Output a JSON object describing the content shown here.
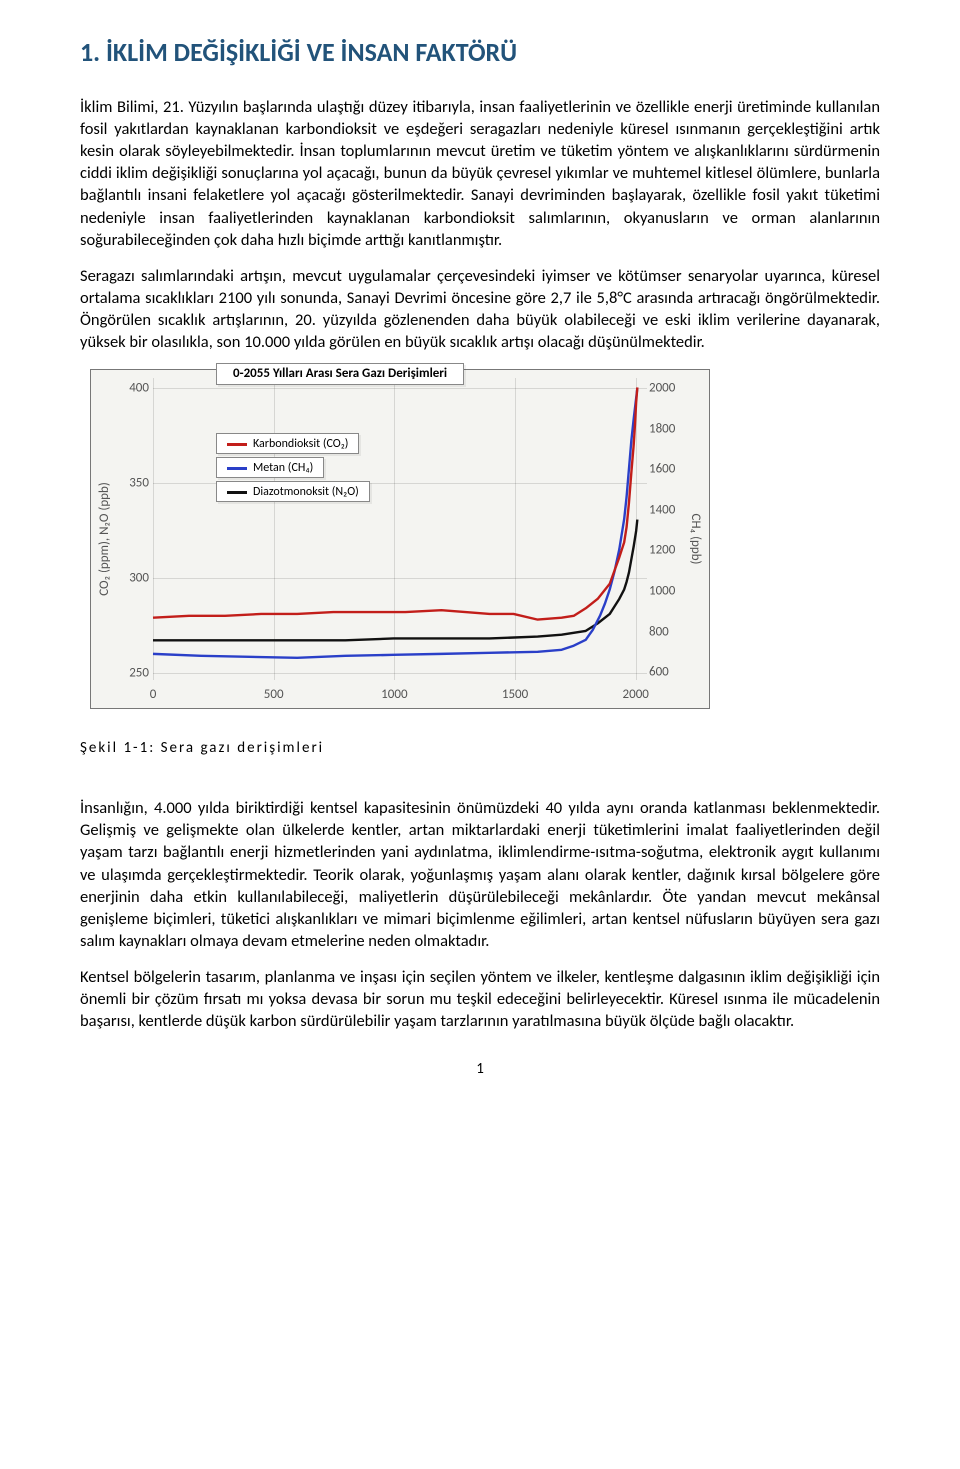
{
  "heading": "1. İKLİM DEĞİŞİKLİĞİ VE İNSAN FAKTÖRÜ",
  "subtitle": "İklim Bilimi, 21. Yüzyılın başlarında ulaştığı düzey itibarıyla, insan faaliyetlerinin ve özellikle enerji üretiminde kullanılan fosil yakıtlardan kaynaklanan karbondioksit ve eşdeğeri seragazları nedeniyle küresel ısınmanın gerçekleştiğini artık kesin olarak söyleyebilmektedir. İnsan toplumlarının mevcut üretim ve tüketim yöntem ve alışkanlıklarını sürdürmenin ciddi iklim değişikliği sonuçlarına yol açacağı, bunun da büyük çevresel yıkımlar ve muhtemel kitlesel ölümlere, bunlarla bağlantılı insani felaketlere yol açacağı gösterilmektedir. Sanayi devriminden başlayarak, özellikle fosil yakıt tüketimi nedeniyle insan faaliyetlerinden kaynaklanan karbondioksit salımlarının, okyanusların ve orman alanlarının soğurabileceğinden çok daha hızlı biçimde arttığı kanıtlanmıştır.",
  "para2": "Seragazı salımlarındaki artışın, mevcut uygulamalar çerçevesindeki iyimser ve kötümser senaryolar uyarınca, küresel ortalama sıcaklıkları 2100 yılı sonunda, Sanayi Devrimi öncesine göre 2,7 ile 5,8°C arasında artıracağı öngörülmektedir. Öngörülen sıcaklık artışlarının, 20. yüzyılda gözlenenden daha büyük olabileceği ve eski iklim verilerine dayanarak, yüksek bir olasılıkla, son 10.000 yılda görülen en büyük sıcaklık artışı olacağı düşünülmektedir.",
  "figcaption": "Şekil 1-1: Sera gazı derişimleri",
  "para3": "İnsanlığın, 4.000 yılda biriktirdiği kentsel kapasitesinin önümüzdeki 40 yılda aynı oranda katlanması beklenmektedir. Gelişmiş ve gelişmekte olan ülkelerde kentler, artan miktarlardaki enerji tüketimlerini imalat faaliyetlerinden değil yaşam tarzı bağlantılı enerji hizmetlerinden yani aydınlatma, iklimlendirme-ısıtma-soğutma, elektronik aygıt kullanımı ve ulaşımda gerçekleştirmektedir. Teorik olarak, yoğunlaşmış yaşam alanı olarak kentler, dağınık kırsal bölgelere göre enerjinin daha etkin kullanılabileceği, maliyetlerin düşürülebileceği mekânlardır. Öte yandan mevcut mekânsal genişleme biçimleri, tüketici alışkanlıkları ve mimari biçimlenme eğilimleri, artan kentsel nüfusların büyüyen sera gazı salım kaynakları olmaya devam etmelerine neden olmaktadır.",
  "para4": "Kentsel bölgelerin tasarım, planlanma ve inşası için seçilen yöntem ve ilkeler, kentleşme dalgasının iklim değişikliği için önemli bir çözüm fırsatı mı yoksa devasa bir sorun mu teşkil edeceğini belirleyecektir. Küresel ısınma ile mücadelenin başarısı, kentlerde düşük karbon sürdürülebilir yaşam tarzlarının yaratılmasına büyük ölçüde bağlı olacaktır.",
  "pageNumber": "1",
  "chart": {
    "title": "0-2055 Yılları Arası Sera Gazı Derişimleri",
    "legend": [
      {
        "label": "Karbondioksit (CO₂)",
        "color": "#c21e1a"
      },
      {
        "label": "Metan (CH₄)",
        "color": "#2a3fc8"
      },
      {
        "label": "Diazotmonoksit (N₂O)",
        "color": "#111111"
      }
    ],
    "xaxis": {
      "min": 0,
      "max": 2055,
      "ticks": [
        0,
        500,
        1000,
        1500,
        2000
      ]
    },
    "yleft": {
      "label": "CO₂ (ppm), N₂O (ppb)",
      "min": 245,
      "max": 405,
      "ticks": [
        250,
        300,
        350,
        400
      ]
    },
    "yright": {
      "label": "CH₄ (ppb)",
      "min": 550,
      "max": 2050,
      "ticks": [
        600,
        800,
        1000,
        1200,
        1400,
        1600,
        1800,
        2000
      ]
    },
    "colors": {
      "background": "#f4f4f1",
      "grid": "rgba(0,0,0,0.12)",
      "axisText": "#555555",
      "boxBorder": "#888888"
    },
    "series": {
      "co2": {
        "color": "#c21e1a",
        "axis": "left",
        "points": [
          [
            0,
            278
          ],
          [
            150,
            279
          ],
          [
            300,
            279
          ],
          [
            450,
            280
          ],
          [
            600,
            280
          ],
          [
            750,
            281
          ],
          [
            900,
            281
          ],
          [
            1050,
            281
          ],
          [
            1200,
            282
          ],
          [
            1300,
            281
          ],
          [
            1400,
            280
          ],
          [
            1500,
            280
          ],
          [
            1600,
            277
          ],
          [
            1700,
            278
          ],
          [
            1750,
            279
          ],
          [
            1800,
            283
          ],
          [
            1850,
            288
          ],
          [
            1900,
            296
          ],
          [
            1920,
            303
          ],
          [
            1940,
            310
          ],
          [
            1960,
            318
          ],
          [
            1970,
            326
          ],
          [
            1980,
            339
          ],
          [
            1990,
            355
          ],
          [
            2000,
            370
          ],
          [
            2005,
            380
          ],
          [
            2010,
            392
          ],
          [
            2015,
            400
          ]
        ]
      },
      "ch4": {
        "color": "#2a3fc8",
        "axis": "right",
        "points": [
          [
            0,
            680
          ],
          [
            200,
            670
          ],
          [
            400,
            665
          ],
          [
            600,
            660
          ],
          [
            800,
            670
          ],
          [
            1000,
            675
          ],
          [
            1200,
            680
          ],
          [
            1400,
            685
          ],
          [
            1600,
            690
          ],
          [
            1700,
            700
          ],
          [
            1750,
            720
          ],
          [
            1800,
            750
          ],
          [
            1830,
            800
          ],
          [
            1860,
            870
          ],
          [
            1880,
            930
          ],
          [
            1900,
            1000
          ],
          [
            1920,
            1090
          ],
          [
            1940,
            1200
          ],
          [
            1960,
            1350
          ],
          [
            1970,
            1460
          ],
          [
            1980,
            1600
          ],
          [
            1990,
            1740
          ],
          [
            2000,
            1850
          ],
          [
            2010,
            1950
          ],
          [
            2015,
            2000
          ]
        ]
      },
      "n2o": {
        "color": "#111111",
        "axis": "left",
        "points": [
          [
            0,
            266
          ],
          [
            200,
            266
          ],
          [
            400,
            266
          ],
          [
            600,
            266
          ],
          [
            800,
            266
          ],
          [
            1000,
            267
          ],
          [
            1200,
            267
          ],
          [
            1400,
            267
          ],
          [
            1600,
            268
          ],
          [
            1700,
            269
          ],
          [
            1800,
            271
          ],
          [
            1850,
            275
          ],
          [
            1900,
            280
          ],
          [
            1920,
            284
          ],
          [
            1940,
            288
          ],
          [
            1960,
            293
          ],
          [
            1970,
            297
          ],
          [
            1980,
            302
          ],
          [
            1990,
            309
          ],
          [
            2000,
            316
          ],
          [
            2010,
            324
          ],
          [
            2015,
            330
          ]
        ]
      }
    }
  }
}
